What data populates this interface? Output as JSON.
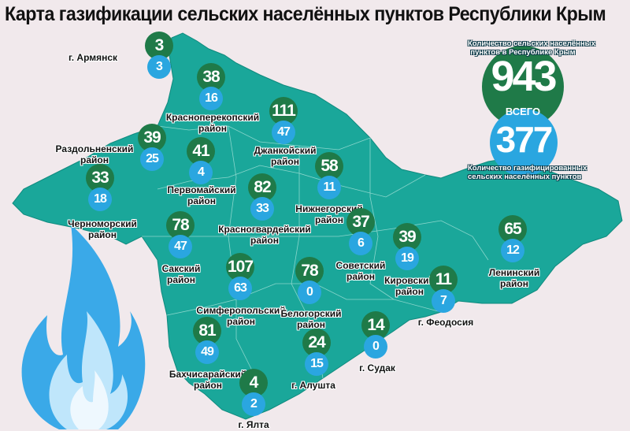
{
  "title": "Карта газификации сельских населённых пунктов Республики Крым",
  "colors": {
    "background": "#f1e9ec",
    "map": "#1aa79a",
    "total": "#1f7a48",
    "gasified": "#2aa6e0",
    "flame": "#3aa9e8"
  },
  "summary": {
    "total_caption_1": "Количество сельских населённых",
    "total_caption_2": "пунктов в Республике Крым",
    "total": "943",
    "total_word": "ВСЕГО",
    "gasified": "377",
    "gasified_caption_1": "Количество газифицированных",
    "gasified_caption_2": "сельских населённых пунктов"
  },
  "regions": [
    {
      "name": "г. Армянск",
      "line2": "",
      "total": "3",
      "gasified": "3"
    },
    {
      "name": "Красноперекопский",
      "line2": "район",
      "total": "38",
      "gasified": "16"
    },
    {
      "name": "Джанкойский",
      "line2": "район",
      "total": "111",
      "gasified": "47"
    },
    {
      "name": "Раздольненский",
      "line2": "район",
      "total": "39",
      "gasified": "25"
    },
    {
      "name": "Первомайский",
      "line2": "район",
      "total": "41",
      "gasified": "4"
    },
    {
      "name": "Черноморский",
      "line2": "район",
      "total": "33",
      "gasified": "18"
    },
    {
      "name": "Красногвардейский",
      "line2": "район",
      "total": "82",
      "gasified": "33"
    },
    {
      "name": "Нижнегорский",
      "line2": "район",
      "total": "58",
      "gasified": "11"
    },
    {
      "name": "Советский",
      "line2": "район",
      "total": "37",
      "gasified": "6"
    },
    {
      "name": "Кировский",
      "line2": "район",
      "total": "39",
      "gasified": "19"
    },
    {
      "name": "Ленинский",
      "line2": "район",
      "total": "65",
      "gasified": "12"
    },
    {
      "name": "Сакский",
      "line2": "район",
      "total": "78",
      "gasified": "47"
    },
    {
      "name": "Симферопольский",
      "line2": "район",
      "total": "107",
      "gasified": "63"
    },
    {
      "name": "Белогорский",
      "line2": "район",
      "total": "78",
      "gasified": "0"
    },
    {
      "name": "г. Феодосия",
      "line2": "",
      "total": "11",
      "gasified": "7"
    },
    {
      "name": "г. Судак",
      "line2": "",
      "total": "14",
      "gasified": "0"
    },
    {
      "name": "г. Алушта",
      "line2": "",
      "total": "24",
      "gasified": "15"
    },
    {
      "name": "Бахчисарайский",
      "line2": "район",
      "total": "81",
      "gasified": "49"
    },
    {
      "name": "г. Ялта",
      "line2": "",
      "total": "4",
      "gasified": "2"
    }
  ]
}
